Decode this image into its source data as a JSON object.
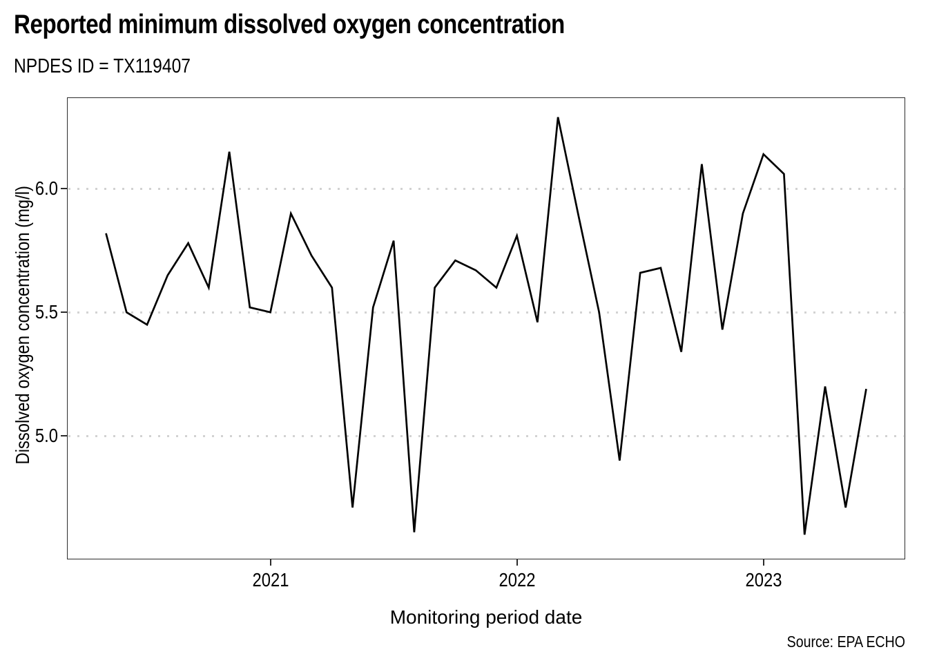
{
  "header": {
    "title": "Reported minimum dissolved oxygen concentration",
    "subtitle": "NPDES ID = TX119407"
  },
  "chart_data": {
    "type": "line",
    "title": "Reported minimum dissolved oxygen concentration",
    "subtitle": "NPDES ID = TX119407",
    "xlabel": "Monitoring period date",
    "ylabel": "Dissolved oxygen concentration (mg/l)",
    "caption": "Source: EPA ECHO",
    "series_name": "Reported minimum dissolved oxygen concentration (mg/l)",
    "x": [
      "2020-05",
      "2020-06",
      "2020-07",
      "2020-08",
      "2020-09",
      "2020-10",
      "2020-11",
      "2020-12",
      "2021-01",
      "2021-02",
      "2021-03",
      "2021-04",
      "2021-05",
      "2021-06",
      "2021-07",
      "2021-08",
      "2021-09",
      "2021-10",
      "2021-11",
      "2021-12",
      "2022-01",
      "2022-02",
      "2022-03",
      "2022-04",
      "2022-05",
      "2022-06",
      "2022-07",
      "2022-08",
      "2022-09",
      "2022-10",
      "2022-11",
      "2022-12",
      "2023-01",
      "2023-02",
      "2023-03",
      "2023-04",
      "2023-05",
      "2023-06"
    ],
    "values": [
      5.82,
      5.5,
      5.45,
      5.65,
      5.78,
      5.6,
      6.15,
      5.52,
      5.5,
      5.9,
      5.73,
      5.6,
      4.71,
      5.52,
      5.79,
      4.61,
      5.6,
      5.71,
      5.67,
      5.6,
      5.81,
      5.46,
      6.29,
      5.89,
      5.5,
      4.9,
      5.66,
      5.68,
      5.34,
      6.1,
      5.43,
      5.9,
      6.14,
      6.06,
      4.6,
      5.2,
      4.71,
      5.19
    ],
    "yticks": [
      {
        "value": 5.0,
        "label": "5.0"
      },
      {
        "value": 5.5,
        "label": "5.5"
      },
      {
        "value": 6.0,
        "label": "6.0"
      }
    ],
    "xticks": [
      {
        "at": "2021-01",
        "label": "2021"
      },
      {
        "at": "2022-01",
        "label": "2022"
      },
      {
        "at": "2023-01",
        "label": "2023"
      }
    ],
    "ylim": [
      4.5,
      6.37
    ],
    "x_pad_months": 1.9,
    "grid": "horizontal-dotted",
    "legend": "none",
    "line_color": "#000000",
    "grid_color": "#d2d2d2",
    "axis_color": "#2b2b2b"
  }
}
